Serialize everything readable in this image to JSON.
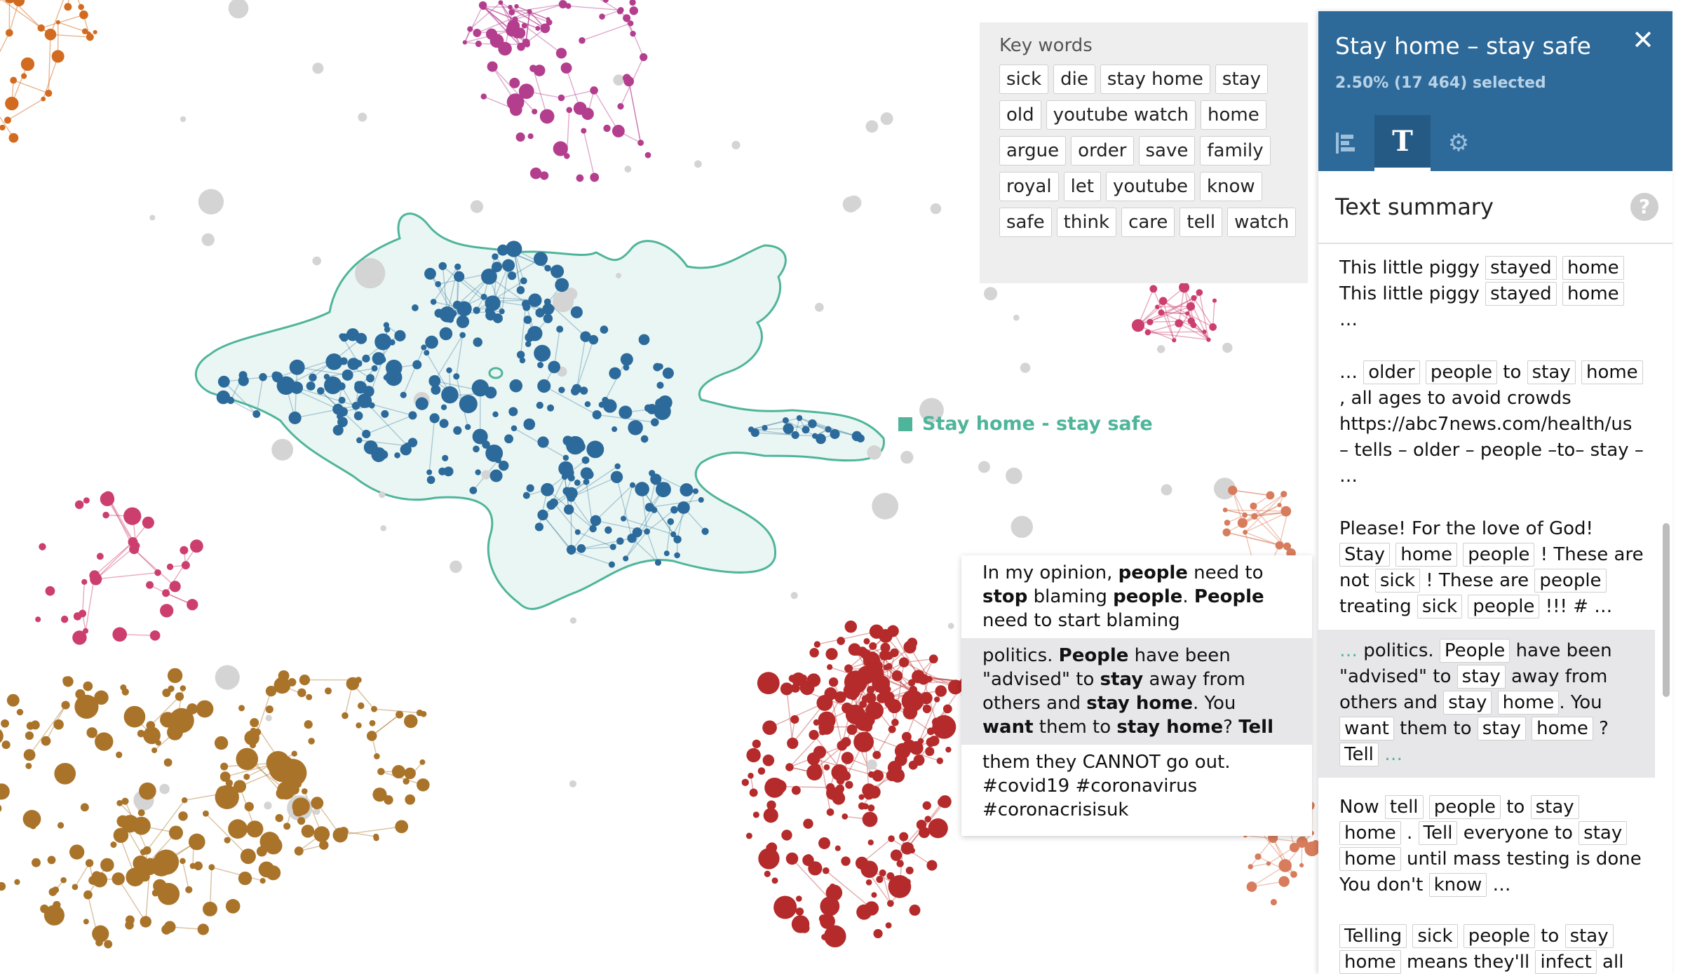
{
  "cluster_label": "Stay home - stay safe",
  "keywords": {
    "title": "Key words",
    "words": [
      "sick",
      "die",
      "stay home",
      "stay",
      "old",
      "youtube watch",
      "home",
      "argue",
      "order",
      "save",
      "family",
      "royal",
      "let",
      "youtube",
      "know",
      "safe",
      "think",
      "care",
      "tell",
      "watch"
    ]
  },
  "tooltip": {
    "segments": [
      {
        "highlight": false,
        "runs": [
          [
            "In my opinion, ",
            false
          ],
          [
            "people",
            true
          ],
          [
            " need to ",
            false
          ],
          [
            "stop",
            true
          ],
          [
            " blaming ",
            false
          ],
          [
            "people",
            true
          ],
          [
            ". ",
            false
          ],
          [
            "People",
            true
          ],
          [
            " need to start blaming",
            false
          ]
        ]
      },
      {
        "highlight": true,
        "runs": [
          [
            "politics. ",
            false
          ],
          [
            "People",
            true
          ],
          [
            " have been \"advised\" to ",
            false
          ],
          [
            "stay",
            true
          ],
          [
            " away from others and ",
            false
          ],
          [
            "stay home",
            true
          ],
          [
            ". You ",
            false
          ],
          [
            "want",
            true
          ],
          [
            " them to ",
            false
          ],
          [
            "stay home",
            true
          ],
          [
            "? ",
            false
          ],
          [
            "Tell",
            true
          ]
        ]
      },
      {
        "highlight": false,
        "runs": [
          [
            "them they CANNOT go out. #covid19 #coronavirus #coronacrisisuk",
            false
          ]
        ]
      }
    ]
  },
  "panel": {
    "title": "Stay home – stay safe",
    "subtitle": "2.50% (17 464) selected",
    "close_icon": "close-icon",
    "tabs": [
      {
        "icon": "bar-chart-icon",
        "label": ""
      },
      {
        "icon": "text-icon",
        "label": "T"
      },
      {
        "icon": "gear-icon",
        "label": ""
      }
    ],
    "summary_title": "Text summary",
    "help_label": "?"
  },
  "summary": [
    [
      [
        "This little piggy ",
        0
      ],
      [
        "stayed",
        1
      ],
      [
        " ",
        0
      ],
      [
        "home",
        1
      ],
      [
        " This little piggy ",
        0
      ],
      [
        "stayed",
        1
      ],
      [
        " ",
        0
      ],
      [
        "home",
        1
      ],
      [
        " …",
        0
      ]
    ],
    [
      [
        "… ",
        0
      ],
      [
        "older",
        1
      ],
      [
        " ",
        0
      ],
      [
        "people",
        1
      ],
      [
        " to ",
        0
      ],
      [
        "stay",
        1
      ],
      [
        " ",
        0
      ],
      [
        "home",
        1
      ],
      [
        ", all ages to avoid crowds https://abc7news.com/health/us – tells – older – people –to– stay – …",
        0
      ]
    ],
    [
      [
        "Please! For the love of God! ",
        0
      ],
      [
        "Stay",
        1
      ],
      [
        " ",
        0
      ],
      [
        "home",
        1
      ],
      [
        " ",
        0
      ],
      [
        "people",
        1
      ],
      [
        " ! These are not ",
        0
      ],
      [
        "sick",
        1
      ],
      [
        " ! These are ",
        0
      ],
      [
        "people",
        1
      ],
      [
        " treating ",
        0
      ],
      [
        "sick",
        1
      ],
      [
        " ",
        0
      ],
      [
        "people",
        1
      ],
      [
        " !!! # …",
        0
      ]
    ],
    [
      [
        "… ",
        2
      ],
      [
        "politics. ",
        0
      ],
      [
        "People",
        1
      ],
      [
        " have been \"advised\" to ",
        0
      ],
      [
        "stay",
        1
      ],
      [
        " away from others and ",
        0
      ],
      [
        "stay",
        1
      ],
      [
        " ",
        0
      ],
      [
        "home",
        1
      ],
      [
        ". You ",
        0
      ],
      [
        "want",
        1
      ],
      [
        " them to ",
        0
      ],
      [
        "stay",
        1
      ],
      [
        " ",
        0
      ],
      [
        "home",
        1
      ],
      [
        " ? ",
        0
      ],
      [
        "Tell",
        1
      ],
      [
        " …",
        2
      ]
    ],
    [
      [
        "Now ",
        0
      ],
      [
        "tell",
        1
      ],
      [
        " ",
        0
      ],
      [
        "people",
        1
      ],
      [
        " to ",
        0
      ],
      [
        "stay",
        1
      ],
      [
        " ",
        0
      ],
      [
        "home",
        1
      ],
      [
        " . ",
        0
      ],
      [
        "Tell",
        1
      ],
      [
        " everyone to ",
        0
      ],
      [
        "stay",
        1
      ],
      [
        " ",
        0
      ],
      [
        "home",
        1
      ],
      [
        " until mass testing is done You don't ",
        0
      ],
      [
        "know",
        1
      ],
      [
        " …",
        0
      ]
    ],
    [
      [
        "Telling",
        1
      ],
      [
        " ",
        0
      ],
      [
        "sick",
        1
      ],
      [
        " ",
        0
      ],
      [
        "people",
        1
      ],
      [
        " to ",
        0
      ],
      [
        "stay",
        1
      ],
      [
        " ",
        0
      ],
      [
        "home",
        1
      ],
      [
        " means they'll ",
        0
      ],
      [
        "infect",
        1
      ],
      [
        " all",
        0
      ]
    ]
  ],
  "colors": {
    "selected_cluster": "#2b6a9b",
    "selected_hull": "#4fb59a",
    "orange_cluster": "#d26b1f",
    "magenta_cluster": "#b33e8e",
    "pink_cluster": "#cc3e6e",
    "gold_cluster": "#a9742a",
    "red_cluster": "#b52a2a",
    "salmon_cluster": "#d77c5c",
    "gray_nodes": "#d4d4d4",
    "panel_header": "#2d6a9a"
  }
}
